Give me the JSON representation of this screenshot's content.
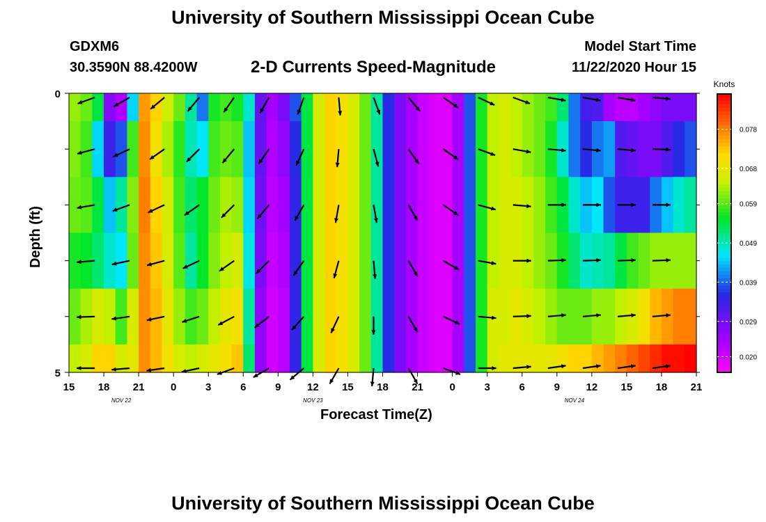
{
  "header": {
    "title_top": "University of Southern Mississippi Ocean Cube",
    "title_bottom": "University of Southern Mississippi Ocean Cube",
    "station_id": "GDXM6",
    "station_coords": "30.3590N 88.4200W",
    "product_title": "2-D Currents Speed-Magnitude",
    "model_start_label": "Model Start Time",
    "model_start_value": "11/22/2020 Hour 15"
  },
  "chart_data": {
    "type": "heatmap",
    "title": "2-D Currents Speed-Magnitude",
    "xlabel": "Forecast Time(Z)",
    "ylabel": "Depth (ft)",
    "colorbar_unit": "Knots",
    "colorbar_ticks": [
      "0.078",
      "0.068",
      "0.059",
      "0.049",
      "0.039",
      "0.029",
      "0.020"
    ],
    "colorbar_values": [
      0.078,
      0.068,
      0.059,
      0.049,
      0.039,
      0.029,
      0.02
    ],
    "zlim": [
      0.016,
      0.087
    ],
    "ylim": [
      0,
      5
    ],
    "y_tick_labels": [
      "0",
      "5"
    ],
    "xlim_hours": [
      0,
      54
    ],
    "x_tick_labels": [
      "15",
      "18",
      "21",
      "0",
      "3",
      "6",
      "9",
      "12",
      "15",
      "18",
      "21",
      "0",
      "3",
      "6",
      "9",
      "12",
      "15",
      "18",
      "21"
    ],
    "date_labels": [
      {
        "text": "NOV  22",
        "hour": 4.5
      },
      {
        "text": "NOV  23",
        "hour": 21
      },
      {
        "text": "NOV  24",
        "hour": 43.5
      }
    ],
    "depth_levels": [
      0,
      1,
      2,
      3,
      4,
      5
    ],
    "columns": [
      {
        "hour": 0,
        "speeds": [
          0.062,
          0.061,
          0.06,
          0.056,
          0.06,
          0.064
        ]
      },
      {
        "hour": 1,
        "speeds": [
          0.06,
          0.058,
          0.059,
          0.055,
          0.063,
          0.066
        ]
      },
      {
        "hour": 2,
        "speeds": [
          0.054,
          0.045,
          0.054,
          0.052,
          0.066,
          0.072
        ]
      },
      {
        "hour": 3,
        "speeds": [
          0.027,
          0.034,
          0.044,
          0.048,
          0.064,
          0.072
        ]
      },
      {
        "hour": 4,
        "speeds": [
          0.023,
          0.038,
          0.05,
          0.046,
          0.058,
          0.066
        ]
      },
      {
        "hour": 5,
        "speeds": [
          0.045,
          0.058,
          0.061,
          0.06,
          0.066,
          0.068
        ]
      },
      {
        "hour": 6,
        "speeds": [
          0.076,
          0.077,
          0.078,
          0.077,
          0.077,
          0.077
        ]
      },
      {
        "hour": 7,
        "speeds": [
          0.072,
          0.07,
          0.072,
          0.073,
          0.074,
          0.074
        ]
      },
      {
        "hour": 8,
        "speeds": [
          0.065,
          0.063,
          0.066,
          0.066,
          0.068,
          0.07
        ]
      },
      {
        "hour": 9,
        "speeds": [
          0.06,
          0.057,
          0.058,
          0.059,
          0.062,
          0.066
        ]
      },
      {
        "hour": 10,
        "speeds": [
          0.05,
          0.049,
          0.052,
          0.05,
          0.058,
          0.064
        ]
      },
      {
        "hour": 11,
        "speeds": [
          0.04,
          0.046,
          0.055,
          0.055,
          0.06,
          0.066
        ]
      },
      {
        "hour": 12,
        "speeds": [
          0.056,
          0.058,
          0.06,
          0.061,
          0.064,
          0.068
        ]
      },
      {
        "hour": 13,
        "speeds": [
          0.058,
          0.06,
          0.063,
          0.064,
          0.068,
          0.07
        ]
      },
      {
        "hour": 14,
        "speeds": [
          0.056,
          0.059,
          0.062,
          0.066,
          0.07,
          0.073
        ]
      },
      {
        "hour": 15,
        "speeds": [
          0.048,
          0.044,
          0.045,
          0.047,
          0.05,
          0.052
        ]
      },
      {
        "hour": 16,
        "speeds": [
          0.03,
          0.03,
          0.029,
          0.028,
          0.026,
          0.026
        ]
      },
      {
        "hour": 17,
        "speeds": [
          0.024,
          0.023,
          0.022,
          0.021,
          0.02,
          0.02
        ]
      },
      {
        "hour": 18,
        "speeds": [
          0.028,
          0.026,
          0.024,
          0.023,
          0.022,
          0.022
        ]
      },
      {
        "hour": 19,
        "speeds": [
          0.038,
          0.036,
          0.035,
          0.035,
          0.035,
          0.035
        ]
      },
      {
        "hour": 20,
        "speeds": [
          0.054,
          0.054,
          0.054,
          0.054,
          0.054,
          0.054
        ]
      },
      {
        "hour": 21,
        "speeds": [
          0.066,
          0.066,
          0.066,
          0.066,
          0.066,
          0.066
        ]
      },
      {
        "hour": 22,
        "speeds": [
          0.072,
          0.072,
          0.072,
          0.072,
          0.072,
          0.072
        ]
      },
      {
        "hour": 23,
        "speeds": [
          0.07,
          0.07,
          0.07,
          0.07,
          0.07,
          0.07
        ]
      },
      {
        "hour": 24,
        "speeds": [
          0.066,
          0.066,
          0.066,
          0.066,
          0.066,
          0.066
        ]
      },
      {
        "hour": 25,
        "speeds": [
          0.06,
          0.06,
          0.06,
          0.06,
          0.06,
          0.06
        ]
      },
      {
        "hour": 26,
        "speeds": [
          0.05,
          0.05,
          0.05,
          0.05,
          0.05,
          0.05
        ]
      },
      {
        "hour": 27,
        "speeds": [
          0.036,
          0.036,
          0.036,
          0.036,
          0.036,
          0.036
        ]
      },
      {
        "hour": 28,
        "speeds": [
          0.028,
          0.028,
          0.028,
          0.028,
          0.028,
          0.028
        ]
      },
      {
        "hour": 29,
        "speeds": [
          0.024,
          0.024,
          0.024,
          0.024,
          0.024,
          0.024
        ]
      },
      {
        "hour": 30,
        "speeds": [
          0.021,
          0.021,
          0.021,
          0.021,
          0.021,
          0.021
        ]
      },
      {
        "hour": 31,
        "speeds": [
          0.019,
          0.019,
          0.019,
          0.019,
          0.019,
          0.019
        ]
      },
      {
        "hour": 32,
        "speeds": [
          0.019,
          0.019,
          0.019,
          0.019,
          0.019,
          0.019
        ]
      },
      {
        "hour": 33,
        "speeds": [
          0.024,
          0.024,
          0.024,
          0.024,
          0.024,
          0.024
        ]
      },
      {
        "hour": 34,
        "speeds": [
          0.038,
          0.038,
          0.038,
          0.038,
          0.038,
          0.038
        ]
      },
      {
        "hour": 35,
        "speeds": [
          0.056,
          0.056,
          0.056,
          0.056,
          0.056,
          0.056
        ]
      },
      {
        "hour": 36,
        "speeds": [
          0.064,
          0.064,
          0.064,
          0.064,
          0.066,
          0.066
        ]
      },
      {
        "hour": 37,
        "speeds": [
          0.066,
          0.066,
          0.066,
          0.066,
          0.066,
          0.068
        ]
      },
      {
        "hour": 38,
        "speeds": [
          0.064,
          0.064,
          0.066,
          0.066,
          0.068,
          0.068
        ]
      },
      {
        "hour": 39,
        "speeds": [
          0.062,
          0.062,
          0.064,
          0.064,
          0.066,
          0.068
        ]
      },
      {
        "hour": 40,
        "speeds": [
          0.06,
          0.06,
          0.062,
          0.062,
          0.064,
          0.068
        ]
      },
      {
        "hour": 41,
        "speeds": [
          0.058,
          0.056,
          0.058,
          0.06,
          0.062,
          0.068
        ]
      },
      {
        "hour": 42,
        "speeds": [
          0.052,
          0.048,
          0.054,
          0.056,
          0.06,
          0.07
        ]
      },
      {
        "hour": 43,
        "speeds": [
          0.04,
          0.04,
          0.048,
          0.052,
          0.06,
          0.072
        ]
      },
      {
        "hour": 44,
        "speeds": [
          0.033,
          0.036,
          0.044,
          0.048,
          0.06,
          0.072
        ]
      },
      {
        "hour": 45,
        "speeds": [
          0.032,
          0.04,
          0.046,
          0.049,
          0.062,
          0.074
        ]
      },
      {
        "hour": 46,
        "speeds": [
          0.024,
          0.042,
          0.038,
          0.05,
          0.062,
          0.076
        ]
      },
      {
        "hour": 47,
        "speeds": [
          0.022,
          0.032,
          0.034,
          0.054,
          0.064,
          0.078
        ]
      },
      {
        "hour": 48,
        "speeds": [
          0.022,
          0.03,
          0.034,
          0.058,
          0.066,
          0.08
        ]
      },
      {
        "hour": 49,
        "speeds": [
          0.024,
          0.028,
          0.034,
          0.06,
          0.07,
          0.082
        ]
      },
      {
        "hour": 50,
        "speeds": [
          0.026,
          0.028,
          0.04,
          0.062,
          0.074,
          0.084
        ]
      },
      {
        "hour": 51,
        "speeds": [
          0.028,
          0.032,
          0.044,
          0.062,
          0.076,
          0.086
        ]
      },
      {
        "hour": 52,
        "speeds": [
          0.028,
          0.036,
          0.048,
          0.062,
          0.078,
          0.086
        ]
      },
      {
        "hour": 53,
        "speeds": [
          0.028,
          0.038,
          0.05,
          0.062,
          0.078,
          0.087
        ]
      }
    ],
    "vector_rows_depth": [
      0,
      1,
      2,
      3,
      4,
      5
    ],
    "vector_columns_hours": [
      3,
      6,
      9,
      12,
      15,
      18,
      21,
      24,
      27,
      30,
      33,
      36,
      39,
      42,
      45,
      48,
      51
    ],
    "vectors_deg": [
      [
        250,
        240,
        230,
        220,
        215,
        210,
        200,
        175,
        160,
        140,
        125,
        115,
        110,
        100,
        100,
        100,
        95
      ],
      [
        255,
        245,
        235,
        225,
        220,
        215,
        205,
        185,
        165,
        145,
        125,
        110,
        100,
        95,
        95,
        95,
        92
      ],
      [
        260,
        250,
        245,
        235,
        225,
        220,
        210,
        190,
        170,
        150,
        125,
        105,
        95,
        90,
        90,
        90,
        90
      ],
      [
        265,
        258,
        255,
        245,
        235,
        225,
        215,
        195,
        175,
        150,
        120,
        100,
        90,
        88,
        88,
        88,
        88
      ],
      [
        268,
        262,
        258,
        252,
        242,
        232,
        222,
        205,
        180,
        150,
        115,
        95,
        88,
        85,
        85,
        85,
        85
      ],
      [
        270,
        265,
        262,
        258,
        250,
        240,
        230,
        210,
        185,
        150,
        110,
        90,
        85,
        82,
        82,
        82,
        82
      ]
    ]
  }
}
